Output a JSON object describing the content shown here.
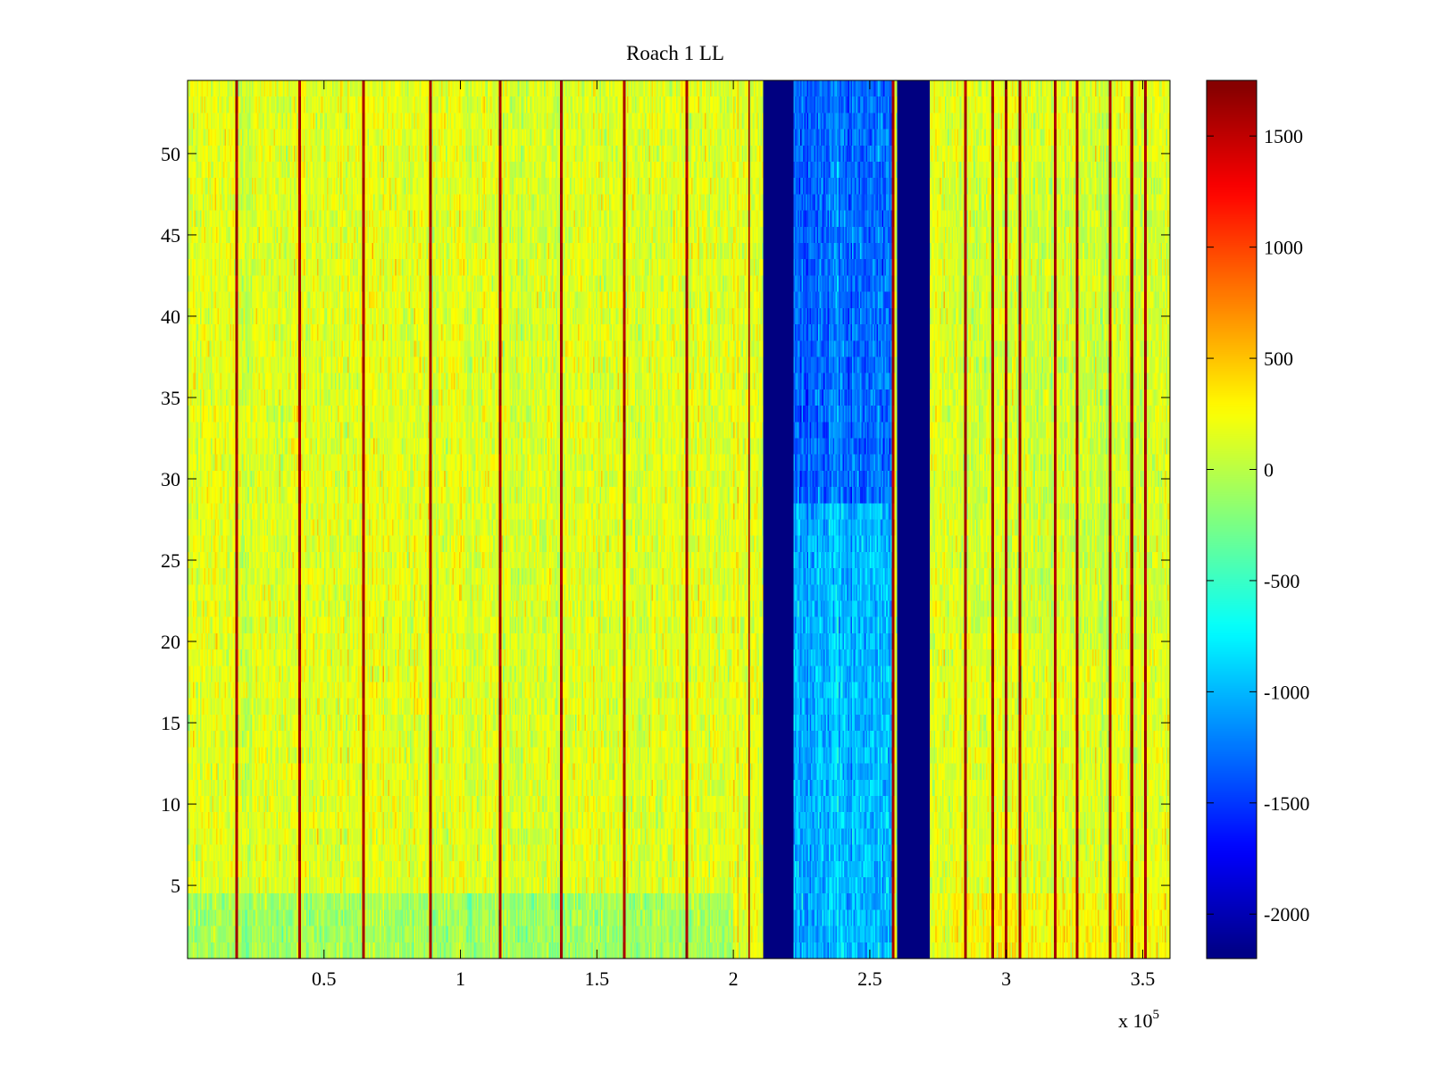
{
  "chart_data": {
    "type": "heatmap",
    "title": "Roach 1 LL",
    "xlabel": "",
    "ylabel": "",
    "x_multiplier_label": "x 10",
    "x_multiplier_exponent": "5",
    "xlim": [
      0,
      3.6
    ],
    "ylim": [
      0.5,
      54.5
    ],
    "xticks": [
      0.5,
      1,
      1.5,
      2,
      2.5,
      3,
      3.5
    ],
    "xtick_labels": [
      "0.5",
      "1",
      "1.5",
      "2",
      "2.5",
      "3",
      "3.5"
    ],
    "yticks": [
      5,
      10,
      15,
      20,
      25,
      30,
      35,
      40,
      45,
      50
    ],
    "ytick_labels": [
      "5",
      "10",
      "15",
      "20",
      "25",
      "30",
      "35",
      "40",
      "45",
      "50"
    ],
    "colorbar": {
      "colormap": "jet",
      "clim": [
        -2200,
        1750
      ],
      "ticks": [
        1500,
        1000,
        500,
        0,
        -500,
        -1000,
        -1500,
        -2000
      ],
      "tick_labels": [
        "1500",
        "1000",
        "500",
        "0",
        "-500",
        "-1000",
        "-1500",
        "-2000"
      ]
    },
    "grid": false,
    "regions": [
      {
        "name": "background",
        "x_range": [
          0,
          3.6
        ],
        "mean_value": 150,
        "spread": 280
      },
      {
        "name": "saturated-band-1",
        "x_range": [
          2.11,
          2.22
        ],
        "mean_value": -2200,
        "spread": 0
      },
      {
        "name": "low-band",
        "x_range": [
          2.22,
          2.59
        ],
        "mean_value": -1000,
        "spread": 350
      },
      {
        "name": "saturated-band-2",
        "x_range": [
          2.6,
          2.72
        ],
        "mean_value": -2200,
        "spread": 0
      }
    ],
    "spike_columns_x": [
      0.18,
      0.41,
      0.645,
      0.89,
      1.145,
      1.37,
      1.6,
      1.83,
      2.058,
      2.585,
      2.85,
      2.95,
      3.0,
      3.05,
      3.18,
      3.26,
      3.38,
      3.46,
      3.51
    ],
    "spike_value": 1600
  }
}
